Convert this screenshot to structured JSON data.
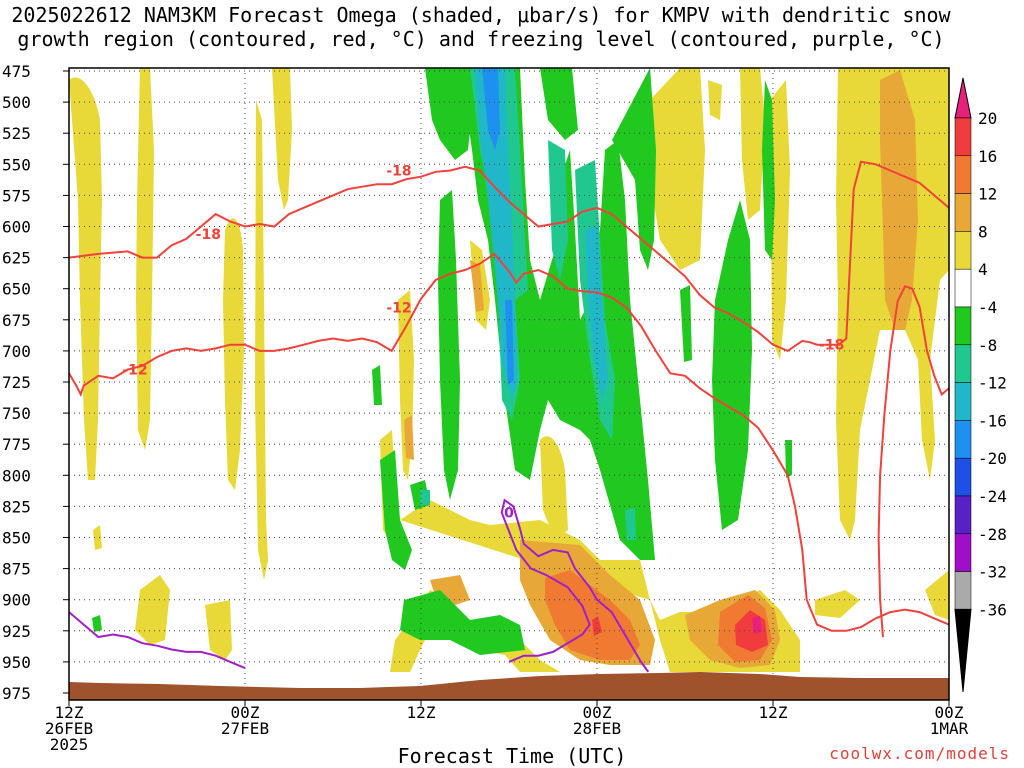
{
  "chart_data": {
    "type": "heatmap",
    "title_line1": "2025022612 NAM3KM Forecast Omega (shaded, μbar/s) for KMPV with dendritic snow",
    "title_line2": "growth region (contoured, red, °C) and freezing level (contoured, purple, °C)",
    "xlabel": "Forecast Time (UTC)",
    "credit": "coolwx.com/models",
    "y_ticks": [
      "475",
      "500",
      "525",
      "550",
      "575",
      "600",
      "625",
      "650",
      "675",
      "700",
      "725",
      "750",
      "775",
      "800",
      "825",
      "850",
      "875",
      "900",
      "925",
      "950",
      "975"
    ],
    "ylim_mb": [
      475,
      975
    ],
    "x_ticks": [
      {
        "h": 0,
        "line1": "12Z",
        "line2": "26FEB",
        "line3": "2025"
      },
      {
        "h": 12,
        "line1": "00Z",
        "line2": "27FEB",
        "line3": ""
      },
      {
        "h": 24,
        "line1": "12Z",
        "line2": "",
        "line3": ""
      },
      {
        "h": 36,
        "line1": "00Z",
        "line2": "28FEB",
        "line3": ""
      },
      {
        "h": 48,
        "line1": "12Z",
        "line2": "",
        "line3": ""
      },
      {
        "h": 60,
        "line1": "00Z",
        "line2": "1MAR",
        "line3": ""
      }
    ],
    "xlim_hours": [
      0,
      60
    ],
    "grid": true,
    "colorbar": {
      "labels": [
        "20",
        "16",
        "12",
        "8",
        "4",
        "-4",
        "-8",
        "-12",
        "-16",
        "-20",
        "-24",
        "-28",
        "-32",
        "-36"
      ],
      "colors": [
        "#e8207c",
        "#f03c3c",
        "#f07a32",
        "#e8a838",
        "#e8d838",
        "#ffffff",
        "#20c820",
        "#20c890",
        "#20b8c8",
        "#1e90f0",
        "#1e50e8",
        "#5a20c8",
        "#a00ec8",
        "#aaaaaa"
      ]
    },
    "contours": [
      {
        "name": "-18",
        "color": "#f0413b",
        "label": "-18",
        "points": [
          [
            0,
            625
          ],
          [
            2,
            622
          ],
          [
            4,
            620
          ],
          [
            5,
            625
          ],
          [
            6,
            625
          ],
          [
            7,
            615
          ],
          [
            8,
            610
          ],
          [
            9,
            600
          ],
          [
            10,
            590
          ],
          [
            11,
            596
          ],
          [
            12,
            600
          ],
          [
            13,
            598
          ],
          [
            14,
            600
          ],
          [
            15,
            590
          ],
          [
            16,
            585
          ],
          [
            17,
            580
          ],
          [
            18,
            575
          ],
          [
            19,
            570
          ],
          [
            20,
            568
          ],
          [
            21,
            566
          ],
          [
            22,
            566
          ],
          [
            23,
            562
          ],
          [
            24,
            560
          ],
          [
            25,
            556
          ],
          [
            26,
            555
          ],
          [
            27,
            552
          ],
          [
            28,
            555
          ],
          [
            29,
            568
          ],
          [
            30,
            580
          ],
          [
            31,
            590
          ],
          [
            32,
            600
          ],
          [
            34,
            596
          ],
          [
            35,
            588
          ],
          [
            36,
            585
          ],
          [
            37,
            590
          ],
          [
            38,
            600
          ],
          [
            40,
            620
          ],
          [
            41,
            630
          ],
          [
            42,
            640
          ],
          [
            43,
            655
          ],
          [
            44,
            665
          ],
          [
            45,
            670
          ],
          [
            46,
            677
          ],
          [
            47,
            685
          ],
          [
            48,
            695
          ],
          [
            49,
            700
          ],
          [
            50,
            692
          ],
          [
            50.5,
            693
          ],
          [
            51,
            695
          ],
          [
            52,
            695
          ],
          [
            52.5,
            695
          ],
          [
            53,
            690
          ],
          [
            53.5,
            570
          ],
          [
            54,
            548
          ],
          [
            55,
            550
          ],
          [
            56,
            555
          ],
          [
            57,
            560
          ],
          [
            58,
            565
          ],
          [
            59,
            575
          ],
          [
            60,
            585
          ],
          [
            60.2,
            598
          ]
        ]
      },
      {
        "name": "-12",
        "color": "#f0413b",
        "label": "-12",
        "points": [
          [
            0,
            718
          ],
          [
            0.5,
            728
          ],
          [
            0.8,
            735
          ],
          [
            1,
            728
          ],
          [
            2,
            720
          ],
          [
            3,
            722
          ],
          [
            4,
            715
          ],
          [
            5,
            712
          ],
          [
            6,
            705
          ],
          [
            7,
            700
          ],
          [
            8,
            698
          ],
          [
            9,
            700
          ],
          [
            10,
            698
          ],
          [
            11,
            695
          ],
          [
            12,
            695
          ],
          [
            13,
            700
          ],
          [
            14,
            700
          ],
          [
            15,
            698
          ],
          [
            16,
            695
          ],
          [
            17,
            692
          ],
          [
            18,
            690
          ],
          [
            19,
            692
          ],
          [
            20,
            690
          ],
          [
            21,
            693
          ],
          [
            22,
            700
          ],
          [
            23,
            680
          ],
          [
            24,
            658
          ],
          [
            25,
            643
          ],
          [
            26,
            638
          ],
          [
            27,
            635
          ],
          [
            28,
            630
          ],
          [
            29,
            622
          ],
          [
            30,
            636
          ],
          [
            30.5,
            645
          ],
          [
            31,
            638
          ],
          [
            32,
            635
          ],
          [
            33,
            640
          ],
          [
            34,
            650
          ],
          [
            35,
            652
          ],
          [
            36,
            653
          ],
          [
            37,
            657
          ],
          [
            38,
            665
          ],
          [
            39,
            680
          ],
          [
            40,
            700
          ],
          [
            41,
            718
          ],
          [
            42,
            720
          ],
          [
            43,
            730
          ],
          [
            44,
            738
          ],
          [
            45,
            745
          ],
          [
            46,
            752
          ],
          [
            47,
            762
          ],
          [
            48,
            780
          ],
          [
            49,
            800
          ],
          [
            49.5,
            825
          ],
          [
            50,
            860
          ],
          [
            50.3,
            900
          ],
          [
            51,
            920
          ],
          [
            52,
            925
          ],
          [
            53,
            925
          ],
          [
            54,
            922
          ],
          [
            55,
            915
          ],
          [
            56,
            910
          ],
          [
            57,
            908
          ],
          [
            58,
            910
          ],
          [
            59,
            915
          ],
          [
            60,
            920
          ]
        ]
      },
      {
        "name": "-12b",
        "color": "#f0413b",
        "label": "",
        "points": [
          [
            55.5,
            930
          ],
          [
            55.3,
            900
          ],
          [
            55.2,
            850
          ],
          [
            55.3,
            800
          ],
          [
            55.6,
            750
          ],
          [
            56,
            700
          ],
          [
            56.5,
            660
          ],
          [
            57,
            648
          ],
          [
            57.5,
            650
          ],
          [
            58,
            665
          ],
          [
            58.5,
            700
          ],
          [
            59,
            720
          ],
          [
            59.5,
            735
          ],
          [
            60,
            730
          ]
        ]
      },
      {
        "name": "0",
        "color": "#a020c8",
        "label": "0",
        "points": [
          [
            0,
            910
          ],
          [
            1,
            920
          ],
          [
            2,
            930
          ],
          [
            3,
            928
          ],
          [
            4,
            930
          ],
          [
            5,
            935
          ],
          [
            6,
            937
          ],
          [
            7,
            940
          ],
          [
            8,
            942
          ],
          [
            9,
            942
          ],
          [
            10,
            945
          ],
          [
            11,
            950
          ],
          [
            12,
            955
          ]
        ]
      },
      {
        "name": "0b",
        "color": "#a020c8",
        "label": "0",
        "points": [
          [
            30,
            950
          ],
          [
            31,
            945
          ],
          [
            32,
            945
          ],
          [
            33,
            942
          ],
          [
            34,
            935
          ],
          [
            35,
            928
          ],
          [
            35.5,
            920
          ],
          [
            35,
            905
          ],
          [
            34,
            890
          ],
          [
            32.5,
            880
          ],
          [
            31.5,
            875
          ],
          [
            30.5,
            860
          ],
          [
            30,
            845
          ],
          [
            29.5,
            830
          ],
          [
            29.7,
            820
          ],
          [
            30.3,
            825
          ],
          [
            30.8,
            845
          ],
          [
            31,
            855
          ],
          [
            32,
            865
          ],
          [
            33,
            860
          ],
          [
            34,
            862
          ],
          [
            34.5,
            875
          ],
          [
            35.5,
            890
          ],
          [
            36,
            900
          ],
          [
            37,
            910
          ],
          [
            38,
            930
          ],
          [
            39,
            950
          ],
          [
            39.5,
            958
          ]
        ]
      }
    ]
  }
}
